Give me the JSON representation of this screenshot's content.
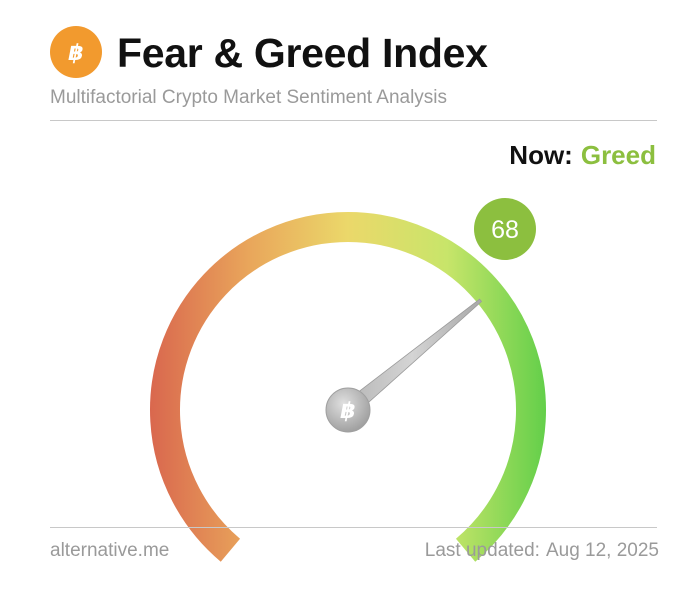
{
  "header": {
    "logo_icon": "bitcoin-icon",
    "logo_color": "#f29a2e",
    "title": "Fear & Greed Index",
    "subtitle": "Multifactorial Crypto Market Sentiment Analysis"
  },
  "status": {
    "now_label": "Now:",
    "classification": "Greed",
    "classification_color": "#8cbf3f"
  },
  "gauge": {
    "value": "68",
    "value_numeric": 68,
    "min": 0,
    "max": 100,
    "badge_color": "#8cbf3f",
    "gradient_colors": [
      "#d9674e",
      "#e9a65b",
      "#ebd86a",
      "#c8e56a",
      "#63cf4a"
    ],
    "center_icon": "bitcoin-icon"
  },
  "footer": {
    "source": "alternative.me",
    "updated_label": "Last updated:",
    "updated_date": "Aug 12, 2025"
  }
}
